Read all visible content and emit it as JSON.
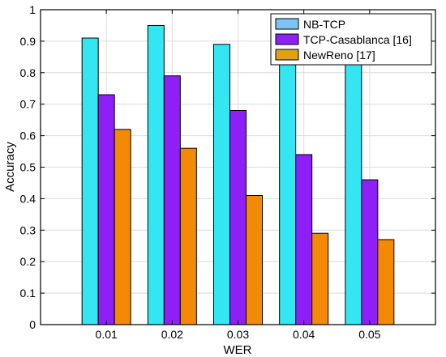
{
  "chart_data": {
    "type": "bar",
    "title": "",
    "xlabel": "WER",
    "ylabel": "Accuracy",
    "categories": [
      "0.01",
      "0.02",
      "0.03",
      "0.04",
      "0.05"
    ],
    "ylim": [
      0,
      1
    ],
    "yticks": [
      "0",
      "0.1",
      "0.2",
      "0.3",
      "0.4",
      "0.5",
      "0.6",
      "0.7",
      "0.8",
      "0.9",
      "1"
    ],
    "grid": true,
    "legend_position": "top-right",
    "series": [
      {
        "name": "NB-TCP",
        "color": "#33e6f2",
        "legend_color": "#7ec4f3",
        "values": [
          0.91,
          0.95,
          0.89,
          0.83,
          0.85
        ]
      },
      {
        "name": "TCP-Casablanca [16]",
        "color": "#8f1ff7",
        "legend_color": "#8f1ff7",
        "values": [
          0.73,
          0.79,
          0.68,
          0.54,
          0.46
        ]
      },
      {
        "name": "NewReno [17]",
        "color": "#f28a05",
        "legend_color": "#dfa012",
        "values": [
          0.62,
          0.56,
          0.41,
          0.29,
          0.27
        ]
      }
    ]
  }
}
